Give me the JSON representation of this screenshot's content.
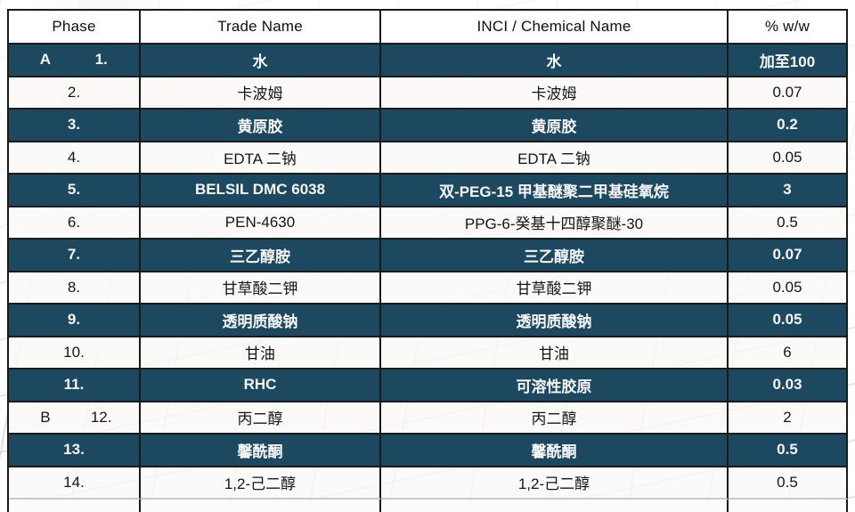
{
  "table": {
    "columns": [
      "Phase",
      "Trade Name",
      "INCI / Chemical Name",
      "% w/w"
    ],
    "rows": [
      {
        "phase_letter": "A",
        "num": "1.",
        "trade_name": "水",
        "inci_name": "水",
        "percent": "加至100"
      },
      {
        "phase_letter": "",
        "num": "2.",
        "trade_name": "卡波姆",
        "inci_name": "卡波姆",
        "percent": "0.07"
      },
      {
        "phase_letter": "",
        "num": "3.",
        "trade_name": "黄原胶",
        "inci_name": "黄原胶",
        "percent": "0.2"
      },
      {
        "phase_letter": "",
        "num": "4.",
        "trade_name": "EDTA 二钠",
        "inci_name": "EDTA 二钠",
        "percent": "0.05"
      },
      {
        "phase_letter": "",
        "num": "5.",
        "trade_name": "BELSIL DMC 6038",
        "inci_name": "双-PEG-15 甲基醚聚二甲基硅氧烷",
        "percent": "3"
      },
      {
        "phase_letter": "",
        "num": "6.",
        "trade_name": "PEN-4630",
        "inci_name": "PPG-6-癸基十四醇聚醚-30",
        "percent": "0.5"
      },
      {
        "phase_letter": "",
        "num": "7.",
        "trade_name": "三乙醇胺",
        "inci_name": "三乙醇胺",
        "percent": "0.07"
      },
      {
        "phase_letter": "",
        "num": "8.",
        "trade_name": "甘草酸二钾",
        "inci_name": "甘草酸二钾",
        "percent": "0.05"
      },
      {
        "phase_letter": "",
        "num": "9.",
        "trade_name": "透明质酸钠",
        "inci_name": "透明质酸钠",
        "percent": "0.05"
      },
      {
        "phase_letter": "",
        "num": "10.",
        "trade_name": "甘油",
        "inci_name": "甘油",
        "percent": "6"
      },
      {
        "phase_letter": "",
        "num": "11.",
        "trade_name": "RHC",
        "inci_name": "可溶性胶原",
        "percent": "0.03"
      },
      {
        "phase_letter": "B",
        "num": "12.",
        "trade_name": "丙二醇",
        "inci_name": "丙二醇",
        "percent": "2"
      },
      {
        "phase_letter": "",
        "num": "13.",
        "trade_name": "馨酰酮",
        "inci_name": "馨酰酮",
        "percent": "0.5"
      },
      {
        "phase_letter": "",
        "num": "14.",
        "trade_name": "1,2-己二醇",
        "inci_name": "1,2-己二醇",
        "percent": "0.5"
      }
    ]
  },
  "colors": {
    "dark_row_bg": "#1c4860",
    "light_row_bg": "#faf9f7",
    "border": "#1a1a1a",
    "dark_row_text": "#f7f7f7",
    "light_row_text": "#161616"
  }
}
